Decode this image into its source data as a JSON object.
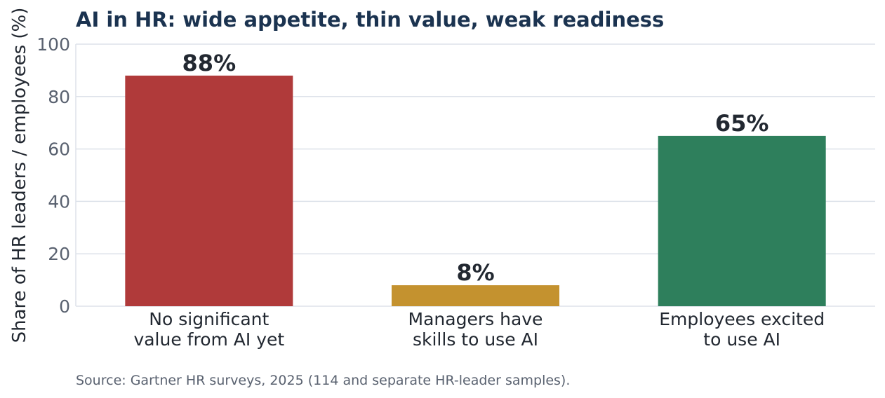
{
  "chart_data": {
    "type": "bar",
    "title": "AI in HR: wide appetite, thin value, weak readiness",
    "ylabel": "Share of HR leaders / employees (%)",
    "xlabel": "",
    "ylim": [
      0,
      100
    ],
    "yticks": [
      0,
      20,
      40,
      60,
      80,
      100
    ],
    "grid": true,
    "categories": [
      [
        "No significant",
        "value from AI yet"
      ],
      [
        "Managers have",
        "skills to use AI"
      ],
      [
        "Employees excited",
        "to use AI"
      ]
    ],
    "values": [
      88,
      8,
      65
    ],
    "data_labels": [
      "88%",
      "8%",
      "65%"
    ],
    "colors": [
      "#b03a3a",
      "#c4922f",
      "#2e7f5c"
    ],
    "source": "Source: Gartner HR surveys, 2025 (114 and separate HR-leader samples)."
  }
}
